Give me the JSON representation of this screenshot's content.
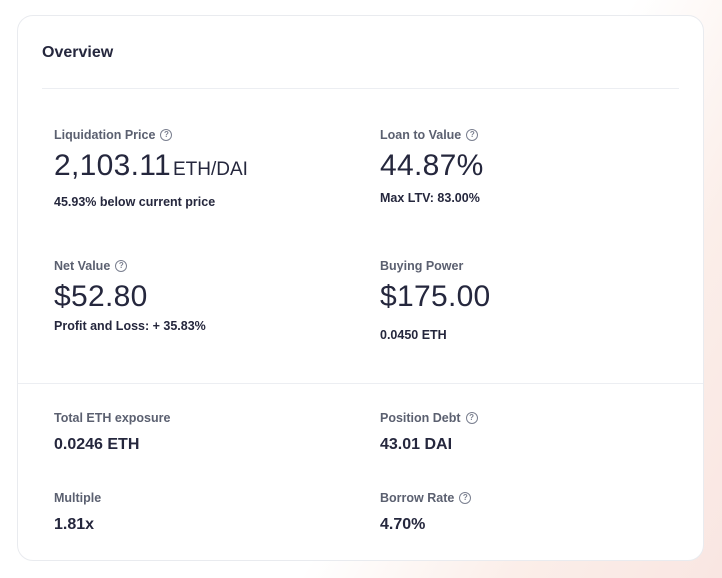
{
  "overview": {
    "title": "Overview",
    "liquidation_price": {
      "label": "Liquidation Price",
      "value": "2,103.11",
      "unit": "ETH/DAI",
      "sub": "45.93% below current price"
    },
    "loan_to_value": {
      "label": "Loan to Value",
      "value": "44.87%",
      "sub": "Max LTV: 83.00%"
    },
    "net_value": {
      "label": "Net Value",
      "value": "$52.80",
      "sub": "Profit and Loss: + 35.83%"
    },
    "buying_power": {
      "label": "Buying Power",
      "value": "$175.00",
      "sub": "0.0450 ETH"
    },
    "total_eth_exposure": {
      "label": "Total ETH exposure",
      "value": "0.0246 ETH"
    },
    "position_debt": {
      "label": "Position Debt",
      "value": "43.01 DAI"
    },
    "multiple": {
      "label": "Multiple",
      "value": "1.81x"
    },
    "borrow_rate": {
      "label": "Borrow Rate",
      "value": "4.70%"
    },
    "help_icon": "question-circle-icon"
  }
}
